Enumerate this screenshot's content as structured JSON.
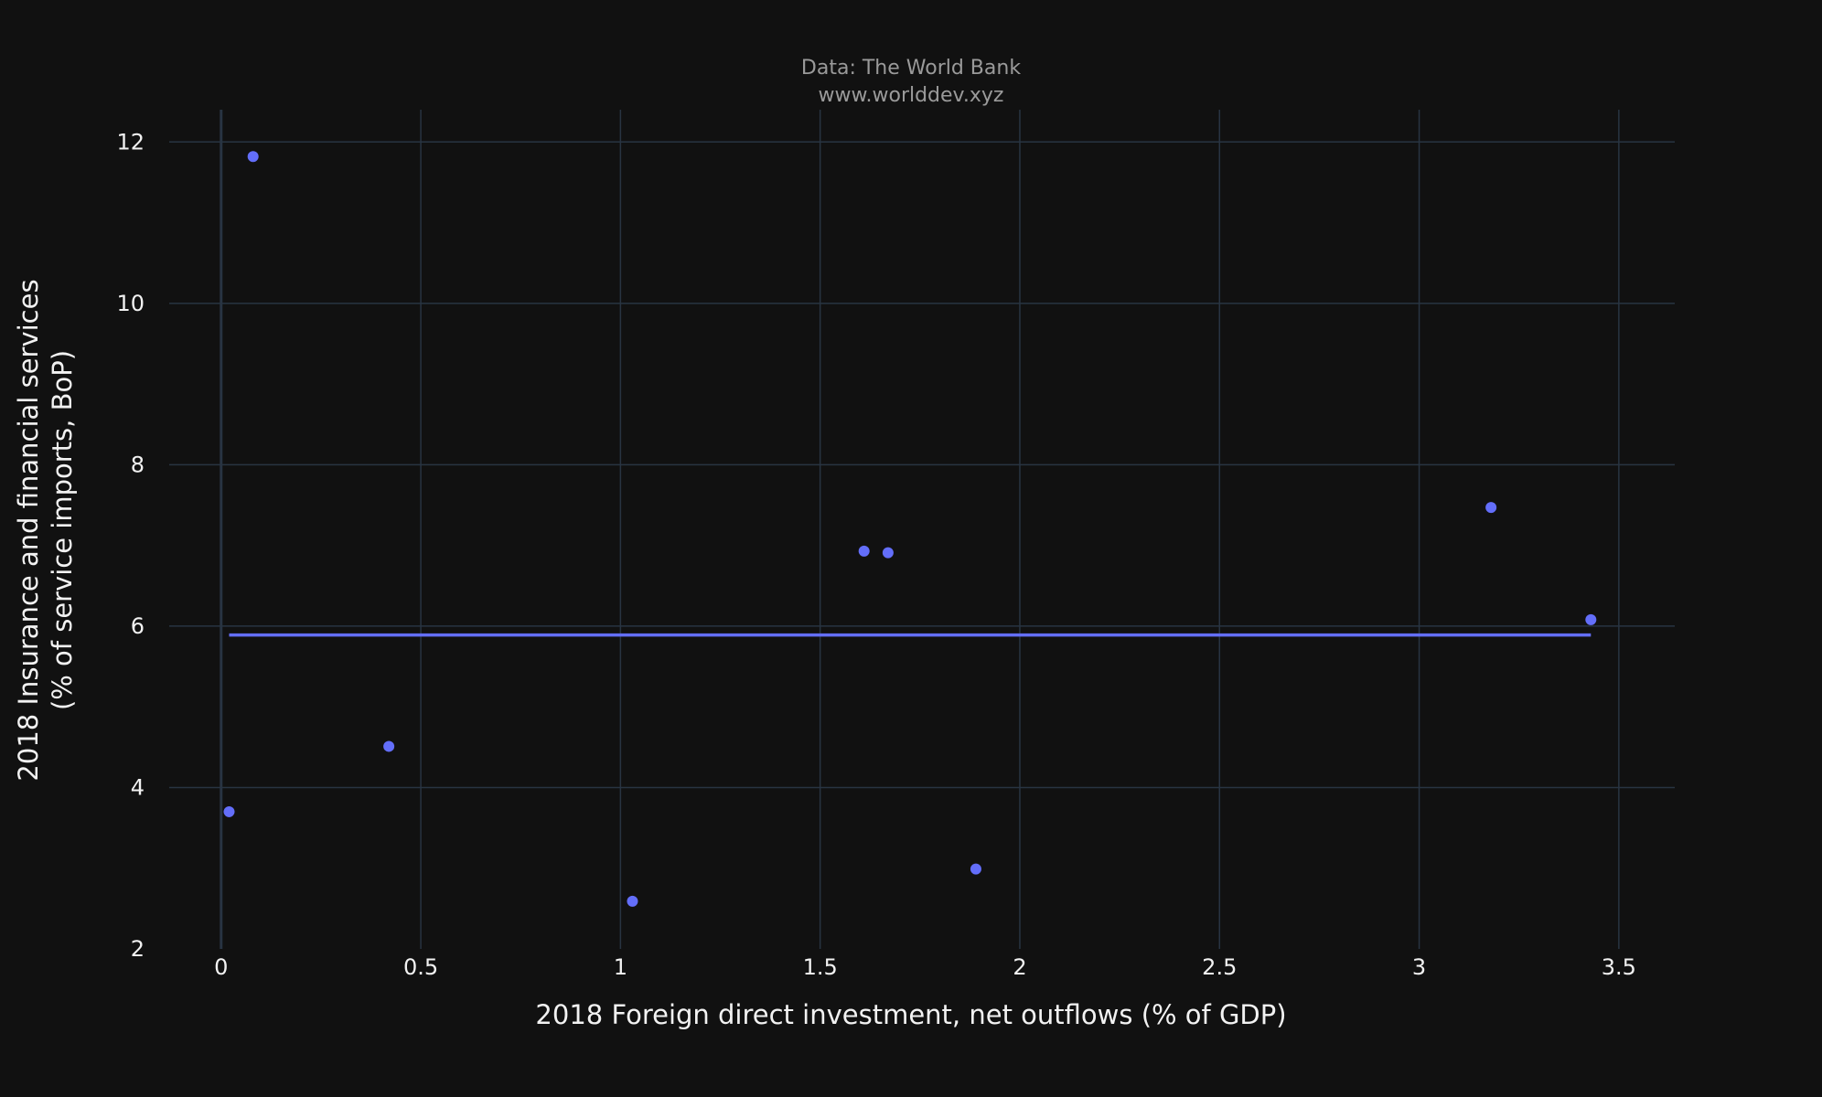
{
  "chart_data": {
    "type": "scatter",
    "title_lines": [
      "Data: The World Bank",
      "www.worlddev.xyz"
    ],
    "xlabel": "2018 Foreign direct investment, net outflows (% of GDP)",
    "ylabel_lines": [
      "2018 Insurance and financial services",
      "(% of service imports, BoP)"
    ],
    "xlim": [
      -0.13,
      3.64
    ],
    "ylim": [
      2,
      12.4
    ],
    "x_ticks": [
      {
        "value": 0,
        "label": "0"
      },
      {
        "value": 0.5,
        "label": "0.5"
      },
      {
        "value": 1,
        "label": "1"
      },
      {
        "value": 1.5,
        "label": "1.5"
      },
      {
        "value": 2,
        "label": "2"
      },
      {
        "value": 2.5,
        "label": "2.5"
      },
      {
        "value": 3,
        "label": "3"
      },
      {
        "value": 3.5,
        "label": "3.5"
      }
    ],
    "y_ticks": [
      {
        "value": 2,
        "label": "2"
      },
      {
        "value": 4,
        "label": "4"
      },
      {
        "value": 6,
        "label": "6"
      },
      {
        "value": 8,
        "label": "8"
      },
      {
        "value": 10,
        "label": "10"
      },
      {
        "value": 12,
        "label": "12"
      }
    ],
    "grid": true,
    "series": [
      {
        "points": [
          {
            "x": 0.02,
            "y": 3.7
          },
          {
            "x": 0.08,
            "y": 11.82
          },
          {
            "x": 0.42,
            "y": 4.51
          },
          {
            "x": 1.03,
            "y": 2.59
          },
          {
            "x": 1.61,
            "y": 6.93
          },
          {
            "x": 1.67,
            "y": 6.91
          },
          {
            "x": 1.89,
            "y": 2.99
          },
          {
            "x": 3.18,
            "y": 7.47
          },
          {
            "x": 3.43,
            "y": 6.08
          }
        ]
      }
    ],
    "trendline": {
      "x": [
        0.02,
        3.43
      ],
      "y": [
        5.89,
        5.89
      ]
    },
    "colors": {
      "background": "#111111",
      "grid": "#283442",
      "zeroline": "#283442",
      "marker": "#636efa",
      "text": "#f2f2f2",
      "subtitle": "#9a9a9a"
    }
  }
}
